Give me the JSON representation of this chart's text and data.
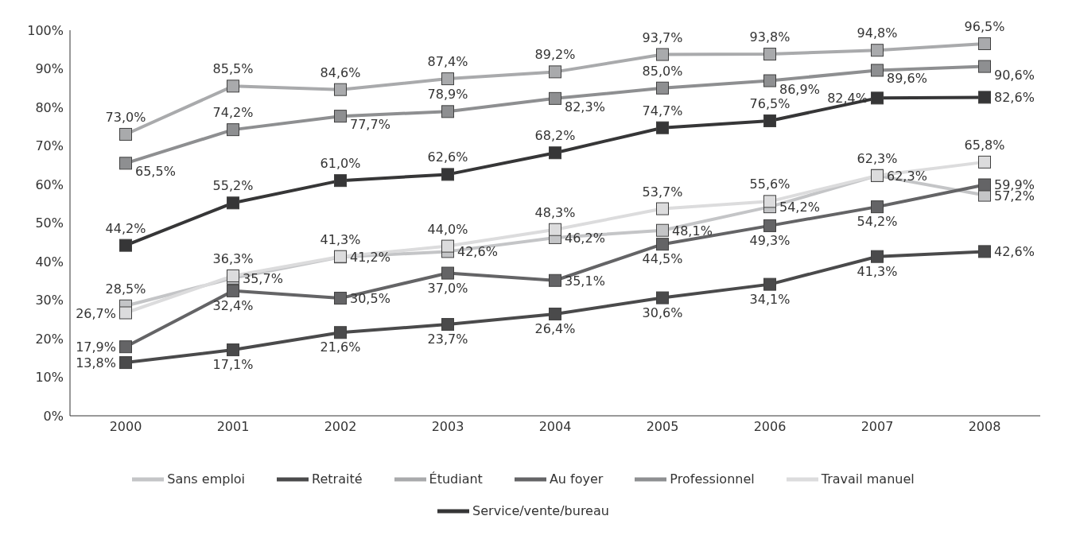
{
  "chart_data": {
    "type": "line",
    "categories": [
      "2000",
      "2001",
      "2002",
      "2003",
      "2004",
      "2005",
      "2006",
      "2007",
      "2008"
    ],
    "series": [
      {
        "name": "Sans emploi",
        "color": "#c4c5c7",
        "values": [
          28.5,
          35.7,
          41.2,
          42.6,
          46.2,
          48.1,
          54.2,
          62.3,
          57.2
        ],
        "value_labels": [
          "28,5%",
          "35,7%",
          "41,2%",
          "42,6%",
          "46,2%",
          "48,1%",
          "54,2%",
          "62,3%",
          "57,2%"
        ]
      },
      {
        "name": "Retraité",
        "color": "#4a4a4b",
        "values": [
          13.8,
          17.1,
          21.6,
          23.7,
          26.4,
          30.6,
          34.1,
          41.3,
          42.6
        ],
        "value_labels": [
          "13,8%",
          "17,1%",
          "21,6%",
          "23,7%",
          "26,4%",
          "30,6%",
          "34,1%",
          "41,3%",
          "42,6%"
        ]
      },
      {
        "name": "Étudiant",
        "color": "#a9aaac",
        "values": [
          73.0,
          85.5,
          84.6,
          87.4,
          89.2,
          93.7,
          93.8,
          94.8,
          96.5
        ],
        "value_labels": [
          "73,0%",
          "85,5%",
          "84,6%",
          "87,4%",
          "89,2%",
          "93,7%",
          "93,8%",
          "94,8%",
          "96,5%"
        ]
      },
      {
        "name": "Au foyer",
        "color": "#646466",
        "values": [
          17.9,
          32.4,
          30.5,
          37.0,
          35.1,
          44.5,
          49.3,
          54.2,
          59.9
        ],
        "value_labels": [
          "17,9%",
          "32,4%",
          "30,5%",
          "37,0%",
          "35,1%",
          "44,5%",
          "49,3%",
          "54,2%",
          "59,9%"
        ]
      },
      {
        "name": "Professionnel",
        "color": "#8e8f91",
        "values": [
          65.5,
          74.2,
          77.7,
          78.9,
          82.3,
          85.0,
          86.9,
          89.6,
          90.6
        ],
        "value_labels": [
          "65,5%",
          "74,2%",
          "77,7%",
          "78,9%",
          "82,3%",
          "85,0%",
          "86,9%",
          "89,6%",
          "90,6%"
        ]
      },
      {
        "name": "Travail manuel",
        "color": "#dcdcdd",
        "values": [
          26.7,
          36.3,
          41.3,
          44.0,
          48.3,
          53.7,
          55.6,
          62.3,
          65.8
        ],
        "value_labels": [
          "26,7%",
          "36,3%",
          "41,3%",
          "44,0%",
          "48,3%",
          "53,7%",
          "55,6%",
          "62,3%",
          "65,8%"
        ]
      },
      {
        "name": "Service/vente/bureau",
        "color": "#363637",
        "values": [
          44.2,
          55.2,
          61.0,
          62.6,
          68.2,
          74.7,
          76.5,
          82.4,
          82.6
        ],
        "value_labels": [
          "44,2%",
          "55,2%",
          "61,0%",
          "62,6%",
          "68,2%",
          "74,7%",
          "76,5%",
          "82,4%",
          "82,6%"
        ]
      }
    ],
    "ylim": [
      0,
      100
    ],
    "yticks": [
      {
        "value": 0,
        "label": "0%"
      },
      {
        "value": 10,
        "label": "10%"
      },
      {
        "value": 20,
        "label": "20%"
      },
      {
        "value": 30,
        "label": "30%"
      },
      {
        "value": 40,
        "label": "40%"
      },
      {
        "value": 50,
        "label": "50%"
      },
      {
        "value": 60,
        "label": "60%"
      },
      {
        "value": 70,
        "label": "70%"
      },
      {
        "value": 80,
        "label": "80%"
      },
      {
        "value": 90,
        "label": "90%"
      },
      {
        "value": 100,
        "label": "100%"
      }
    ],
    "grid": false,
    "legend": "bottom",
    "marker": "square",
    "line_style": "solid"
  }
}
